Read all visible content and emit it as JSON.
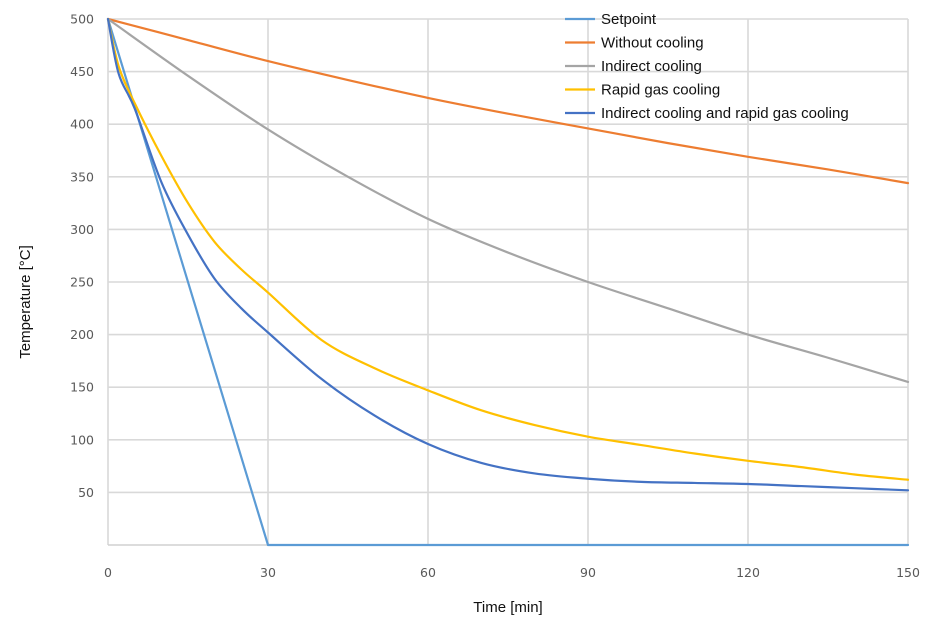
{
  "chart_data": {
    "type": "line",
    "xlabel": "Time [min]",
    "ylabel": "Temperature [°C]",
    "xlim": [
      0,
      150
    ],
    "ylim": [
      0,
      500
    ],
    "x_ticks": [
      0,
      30,
      60,
      90,
      120,
      150
    ],
    "y_ticks": [
      50,
      100,
      150,
      200,
      250,
      300,
      350,
      400,
      450,
      500
    ],
    "grid": true,
    "legend_position": "top-right",
    "series": [
      {
        "name": "Setpoint",
        "color": "#5b9bd5",
        "x": [
          0,
          30,
          60,
          90,
          120,
          150
        ],
        "y": [
          500,
          0,
          0,
          0,
          0,
          0
        ]
      },
      {
        "name": "Without cooling",
        "color": "#ed7d31",
        "x": [
          0,
          15,
          30,
          45,
          60,
          75,
          90,
          105,
          120,
          135,
          150
        ],
        "y": [
          500,
          480,
          460,
          442,
          425,
          410,
          396,
          382,
          369,
          357,
          344
        ]
      },
      {
        "name": "Indirect cooling",
        "color": "#a5a5a5",
        "x": [
          0,
          15,
          30,
          45,
          60,
          75,
          90,
          105,
          120,
          135,
          150
        ],
        "y": [
          500,
          446,
          395,
          350,
          310,
          278,
          250,
          225,
          200,
          178,
          155
        ]
      },
      {
        "name": "Rapid gas cooling",
        "color": "#ffc000",
        "x": [
          0,
          2,
          5,
          10,
          15,
          20,
          25,
          30,
          40,
          50,
          60,
          70,
          80,
          90,
          100,
          110,
          120,
          130,
          140,
          150
        ],
        "y": [
          500,
          455,
          420,
          370,
          325,
          288,
          262,
          240,
          195,
          168,
          147,
          128,
          114,
          103,
          95,
          87,
          80,
          74,
          67,
          62
        ]
      },
      {
        "name": "Indirect cooling and rapid gas cooling",
        "color": "#4472c4",
        "x": [
          0,
          2,
          5,
          10,
          15,
          20,
          25,
          30,
          40,
          50,
          60,
          70,
          80,
          90,
          100,
          110,
          120,
          130,
          140,
          150
        ],
        "y": [
          500,
          448,
          415,
          345,
          295,
          253,
          225,
          202,
          158,
          123,
          96,
          78,
          68,
          63,
          60,
          59,
          58,
          56,
          54,
          52
        ]
      }
    ]
  }
}
